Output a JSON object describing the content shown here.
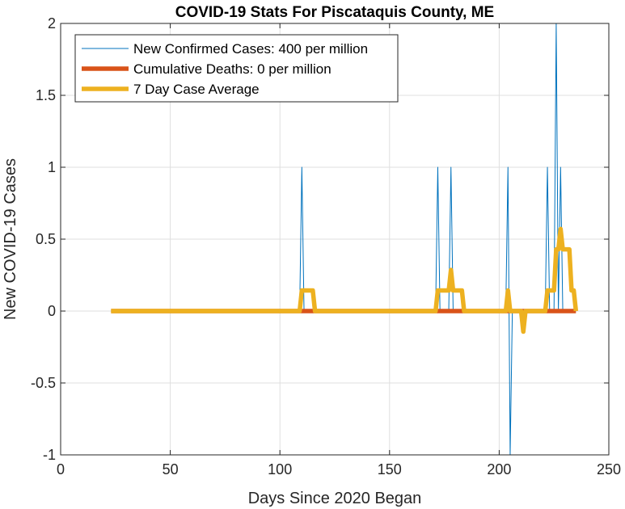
{
  "chart_data": {
    "type": "line",
    "title": "COVID-19 Stats For Piscataquis County, ME",
    "xlabel": "Days Since 2020 Began",
    "ylabel": "New COVID-19 Cases",
    "xlim": [
      0,
      250
    ],
    "ylim": [
      -1,
      2
    ],
    "xticks": [
      0,
      50,
      100,
      150,
      200,
      250
    ],
    "yticks": [
      -1,
      -0.5,
      0,
      0.5,
      1,
      1.5,
      2
    ],
    "xtick_labels": [
      "0",
      "50",
      "100",
      "150",
      "200",
      "250"
    ],
    "ytick_labels": [
      "-1",
      "-0.5",
      "0",
      "0.5",
      "1",
      "1.5",
      "2"
    ],
    "grid": true,
    "legend_position": "top-left",
    "series": [
      {
        "name": "New Confirmed Cases: 400 per million",
        "color": "#0072BD",
        "style": "thin",
        "points": [
          [
            23,
            0
          ],
          [
            109,
            0
          ],
          [
            110,
            1
          ],
          [
            111,
            0
          ],
          [
            171,
            0
          ],
          [
            172,
            1
          ],
          [
            173,
            0
          ],
          [
            177,
            0
          ],
          [
            178,
            1
          ],
          [
            179,
            0
          ],
          [
            203,
            0
          ],
          [
            204,
            1
          ],
          [
            205,
            -1
          ],
          [
            206,
            0
          ],
          [
            221,
            0
          ],
          [
            222,
            1
          ],
          [
            223,
            0
          ],
          [
            225,
            0
          ],
          [
            226,
            2
          ],
          [
            227,
            0
          ],
          [
            228,
            1
          ],
          [
            229,
            0
          ],
          [
            235,
            0
          ]
        ]
      },
      {
        "name": "Cumulative Deaths: 0 per million",
        "color": "#D95319",
        "style": "thick",
        "points": [
          [
            23,
            0
          ],
          [
            235,
            0
          ]
        ]
      },
      {
        "name": "7 Day Case Average",
        "color": "#EDB120",
        "style": "thick",
        "points": [
          [
            23,
            0
          ],
          [
            109,
            0
          ],
          [
            110,
            0.143
          ],
          [
            115,
            0.143
          ],
          [
            116,
            0
          ],
          [
            171,
            0
          ],
          [
            172,
            0.143
          ],
          [
            177,
            0.143
          ],
          [
            178,
            0.286
          ],
          [
            179,
            0.143
          ],
          [
            183,
            0.143
          ],
          [
            184,
            0
          ],
          [
            203,
            0
          ],
          [
            204,
            0.143
          ],
          [
            205,
            0
          ],
          [
            210,
            0
          ],
          [
            211,
            -0.143
          ],
          [
            212,
            0
          ],
          [
            221,
            0
          ],
          [
            222,
            0.143
          ],
          [
            225,
            0.143
          ],
          [
            226,
            0.429
          ],
          [
            227,
            0.429
          ],
          [
            228,
            0.571
          ],
          [
            229,
            0.429
          ],
          [
            232,
            0.429
          ],
          [
            233,
            0.143
          ],
          [
            234,
            0.143
          ],
          [
            235,
            0
          ]
        ]
      }
    ]
  }
}
